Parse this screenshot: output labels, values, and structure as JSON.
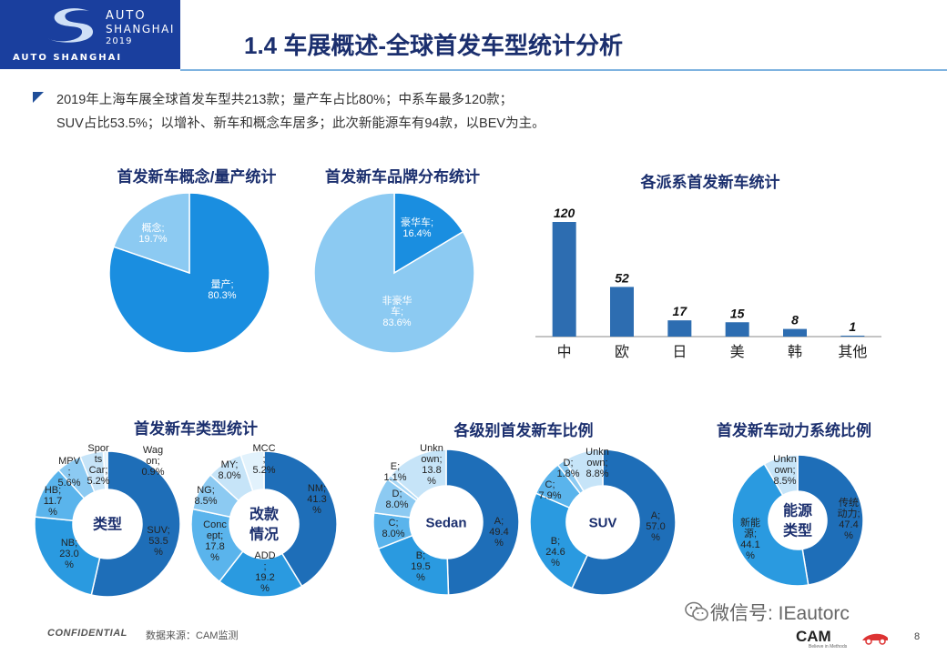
{
  "header": {
    "logo_auto": "AUTO",
    "logo_shanghai": "SHANGHAI",
    "logo_year": "2019",
    "logo_bottom": "AUTO SHANGHAI",
    "title": "1.4 车展概述-全球首发车型统计分析"
  },
  "summary": {
    "line1": "2019年上海车展全球首发车型共213款；量产车占比80%；中系车最多120款；",
    "line2": "SUV占比53.5%；以增补、新车和概念车居多；此次新能源车有94款，以BEV为主。"
  },
  "footer": {
    "confidential": "CONFIDENTIAL",
    "source": "数据来源：CAM监测",
    "watermark": "微信号: IEautorc",
    "cam": "CAM",
    "cam_sub": "Believe in Methods",
    "page": "8"
  },
  "colors": {
    "dark": "#1e6eb8",
    "mid": "#2a9ae0",
    "light": "#8ccaf2",
    "pale": "#c6e4f8",
    "bar": "#2d6db1"
  },
  "chart_data": [
    {
      "id": "concept-vs-production",
      "type": "pie",
      "title": "首发新车概念/量产统计",
      "slices": [
        {
          "label": "量产;",
          "value_label": "80.3%",
          "value": 80.3,
          "color": "#1a8ee0"
        },
        {
          "label": "概念;",
          "value_label": "19.7%",
          "value": 19.7,
          "color": "#8ccaf2"
        }
      ]
    },
    {
      "id": "brand-distribution",
      "type": "pie",
      "title": "首发新车品牌分布统计",
      "slices": [
        {
          "label": "豪华车;",
          "value_label": "16.4%",
          "value": 16.4,
          "color": "#1a8ee0"
        },
        {
          "label": "非豪华 车;",
          "value_label": "83.6%",
          "value": 83.6,
          "color": "#8ccaf2"
        }
      ]
    },
    {
      "id": "origin-bar",
      "type": "bar",
      "title": "各派系首发新车统计",
      "categories": [
        "中",
        "欧",
        "日",
        "美",
        "韩",
        "其他"
      ],
      "values": [
        120,
        52,
        17,
        15,
        8,
        1
      ],
      "ylim": [
        0,
        120
      ]
    },
    {
      "id": "vehicle-type",
      "type": "pie",
      "variant": "donut",
      "title": "首发新车类型统计",
      "center": "类型",
      "slices": [
        {
          "label": "SUV; 53.5 %",
          "value": 53.5,
          "color": "#1e6eb8"
        },
        {
          "label": "NB; 23.0 %",
          "value": 23.0,
          "color": "#2a9ae0"
        },
        {
          "label": "HB; 11.7 %",
          "value": 11.7,
          "color": "#5ab4ec"
        },
        {
          "label": "MPV ; 5.6%",
          "value": 5.6,
          "color": "#8ccaf2"
        },
        {
          "label": "Spor ts Car; 5.2%",
          "value": 5.2,
          "color": "#c6e4f8"
        },
        {
          "label": "Wag on; 0.9%",
          "value": 0.9,
          "color": "#e2f2fc"
        }
      ]
    },
    {
      "id": "modification",
      "type": "pie",
      "variant": "donut",
      "center_1": "改款",
      "center_2": "情况",
      "slices": [
        {
          "label": "NM; 41.3 %",
          "value": 41.3,
          "color": "#1e6eb8"
        },
        {
          "label": "ADD ; 19.2 %",
          "value": 19.2,
          "color": "#2a9ae0"
        },
        {
          "label": "Conc ept; 17.8 %",
          "value": 17.8,
          "color": "#5ab4ec"
        },
        {
          "label": "NG; 8.5%",
          "value": 8.5,
          "color": "#8ccaf2"
        },
        {
          "label": "MY; 8.0%",
          "value": 8.0,
          "color": "#c6e4f8"
        },
        {
          "label": "MCC ; 5.2%",
          "value": 5.2,
          "color": "#e2f2fc"
        }
      ]
    },
    {
      "id": "sedan-level",
      "type": "pie",
      "variant": "donut",
      "title": "各级别首发新车比例",
      "center": "Sedan",
      "slices": [
        {
          "label": "A; 49.4 %",
          "value": 49.4,
          "color": "#1e6eb8"
        },
        {
          "label": "B; 19.5 %",
          "value": 19.5,
          "color": "#2a9ae0"
        },
        {
          "label": "C; 8.0%",
          "value": 8.0,
          "color": "#5ab4ec"
        },
        {
          "label": "D; 8.0%",
          "value": 8.0,
          "color": "#8ccaf2"
        },
        {
          "label": "E; 1.1%",
          "value": 1.1,
          "color": "#aad8f6"
        },
        {
          "label": "Unkn own; 13.8 %",
          "value": 13.8,
          "color": "#c6e4f8"
        }
      ]
    },
    {
      "id": "suv-level",
      "type": "pie",
      "variant": "donut",
      "center": "SUV",
      "slices": [
        {
          "label": "A; 57.0 %",
          "value": 57.0,
          "color": "#1e6eb8"
        },
        {
          "label": "B; 24.6 %",
          "value": 24.6,
          "color": "#2a9ae0"
        },
        {
          "label": "C; 7.9%",
          "value": 7.9,
          "color": "#5ab4ec"
        },
        {
          "label": "D; 1.8%",
          "value": 1.8,
          "color": "#8ccaf2"
        },
        {
          "label": "Unkn own; 8.8%",
          "value": 8.8,
          "color": "#c6e4f8"
        }
      ]
    },
    {
      "id": "powertrain",
      "type": "pie",
      "variant": "donut",
      "title": "首发新车动力系统比例",
      "center_1": "能源",
      "center_2": "类型",
      "slices": [
        {
          "label": "传统 动力; 47.4 %",
          "value": 47.4,
          "color": "#1e6eb8"
        },
        {
          "label": "新能 源; 44.1 %",
          "value": 44.1,
          "color": "#2a9ae0"
        },
        {
          "label": "Unkn own; 8.5%",
          "value": 8.5,
          "color": "#c6e4f8"
        }
      ]
    }
  ]
}
